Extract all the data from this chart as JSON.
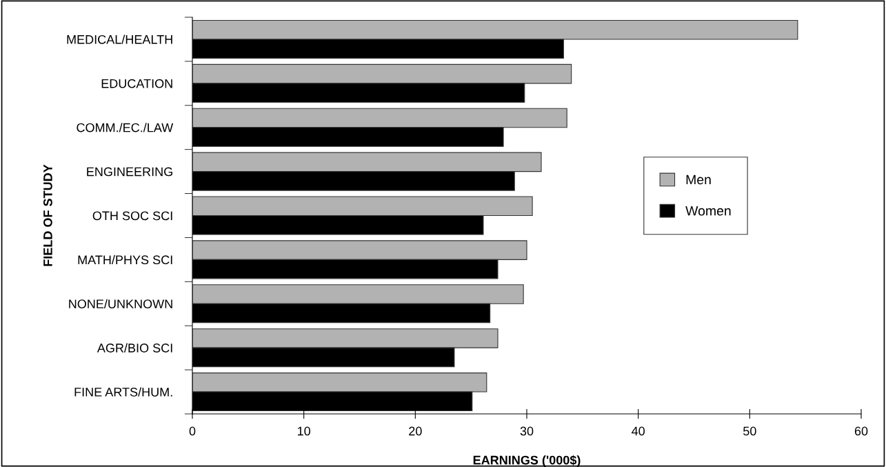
{
  "chart_data": {
    "type": "bar",
    "orientation": "horizontal",
    "xlabel": "EARNINGS ('000$)",
    "ylabel": "FIELD OF STUDY",
    "categories": [
      "MEDICAL/HEALTH",
      "EDUCATION",
      "COMM./EC./LAW",
      "ENGINEERING",
      "OTH SOC SCI",
      "MATH/PHYS SCI",
      "NONE/UNKNOWN",
      "AGR/BIO SCI",
      "FINE ARTS/HUM."
    ],
    "series": [
      {
        "name": "Men",
        "color": "#b2b2b2",
        "values": [
          54.3,
          34.0,
          33.6,
          31.3,
          30.5,
          30.0,
          29.7,
          27.4,
          26.4
        ]
      },
      {
        "name": "Women",
        "color": "#000000",
        "values": [
          33.3,
          29.8,
          27.9,
          28.9,
          26.1,
          27.4,
          26.7,
          23.5,
          25.1
        ]
      }
    ],
    "xlim": [
      0,
      60
    ],
    "xticks": [
      0,
      10,
      20,
      30,
      40,
      50,
      60
    ],
    "grid": false,
    "legend": "right"
  }
}
